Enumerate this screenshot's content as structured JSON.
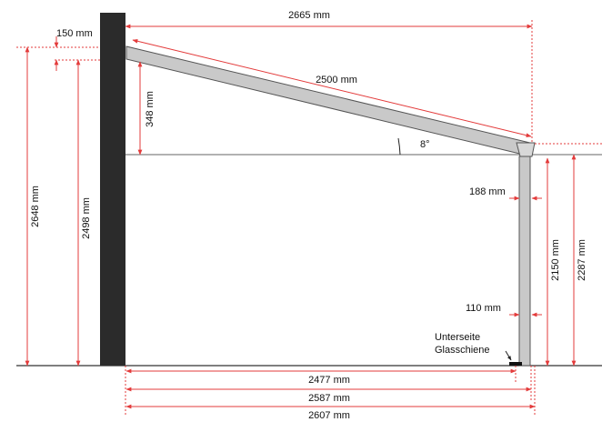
{
  "labels": {
    "top_width": "2665 mm",
    "wall_offset": "150 mm",
    "rafter_length": "2500 mm",
    "rise": "348 mm",
    "angle": "8°",
    "left_outer_height": "2648 mm",
    "left_inner_height": "2498 mm",
    "post_offset_upper": "188 mm",
    "post_offset_lower": "110 mm",
    "post_height": "2150 mm",
    "right_height": "2287 mm",
    "glass_rail_line1": "Unterseite",
    "glass_rail_line2": "Glasschiene",
    "bottom_width_1": "2477 mm",
    "bottom_width_2": "2587 mm",
    "bottom_width_3": "2607 mm"
  },
  "colors": {
    "wall": "#2b2b2b",
    "beam_fill": "#c9c9c9",
    "beam_stroke": "#555555",
    "dimension": "#e33b3b",
    "ground": "#333333"
  }
}
